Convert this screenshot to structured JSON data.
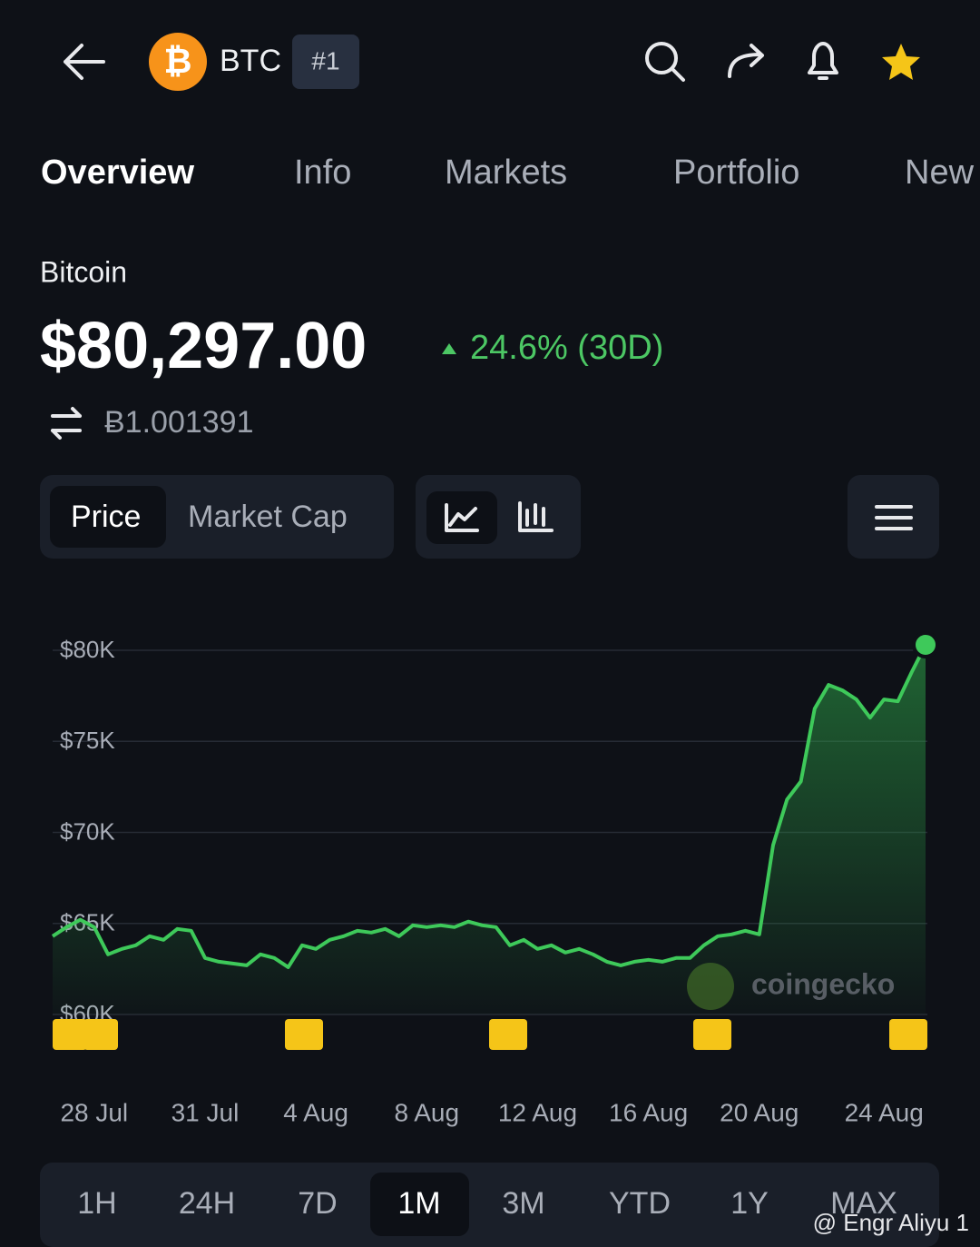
{
  "header": {
    "symbol": "BTC",
    "rank": "#1"
  },
  "tabs": [
    "Overview",
    "Info",
    "Markets",
    "Portfolio",
    "New"
  ],
  "coin": {
    "name": "Bitcoin",
    "price": "$80,297.00",
    "change": "24.6% (30D)",
    "btc_price": "Ƀ1.001391"
  },
  "toggle": [
    "Price",
    "Market Cap"
  ],
  "chart_data": {
    "type": "line",
    "color": "#3ec95a",
    "grid": true,
    "categories": [
      null,
      null,
      null,
      "28 Jul",
      null,
      null,
      null,
      null,
      null,
      null,
      null,
      "31 Jul",
      null,
      null,
      null,
      null,
      null,
      null,
      null,
      "4 Aug",
      null,
      null,
      null,
      null,
      null,
      null,
      null,
      "8 Aug",
      null,
      null,
      null,
      null,
      null,
      null,
      null,
      "12 Aug",
      null,
      null,
      null,
      null,
      null,
      null,
      null,
      "16 Aug",
      null,
      null,
      null,
      null,
      null,
      null,
      null,
      "20 Aug",
      null,
      null,
      null,
      null,
      null,
      null,
      null,
      null,
      "24 Aug",
      null,
      null,
      null
    ],
    "values": [
      64300,
      64800,
      65200,
      64800,
      63300,
      63600,
      63800,
      64300,
      64100,
      64700,
      64600,
      63100,
      62900,
      62800,
      62700,
      63300,
      63100,
      62600,
      63800,
      63600,
      64100,
      64300,
      64600,
      64500,
      64700,
      64300,
      64900,
      64800,
      64900,
      64800,
      65100,
      64900,
      64800,
      63800,
      64100,
      63600,
      63800,
      63400,
      63600,
      63300,
      62900,
      62700,
      62900,
      63000,
      62900,
      63100,
      63100,
      63800,
      64300,
      64400,
      64600,
      64400,
      69300,
      71800,
      72800,
      76800,
      78100,
      77800,
      77300,
      76300,
      77300,
      77200,
      78800,
      80300
    ],
    "ylim": [
      60000,
      80000
    ],
    "yticks": [
      {
        "value": 60000,
        "label": "$60K"
      },
      {
        "value": 65000,
        "label": "$65K"
      },
      {
        "value": 70000,
        "label": "$70K"
      },
      {
        "value": 75000,
        "label": "$75K"
      },
      {
        "value": 80000,
        "label": "$80K"
      }
    ]
  },
  "ranges": [
    "1H",
    "24H",
    "7D",
    "1M",
    "3M",
    "YTD",
    "1Y",
    "MAX"
  ],
  "watermark": "coingecko",
  "credit": "@ Engr Aliyu 1"
}
